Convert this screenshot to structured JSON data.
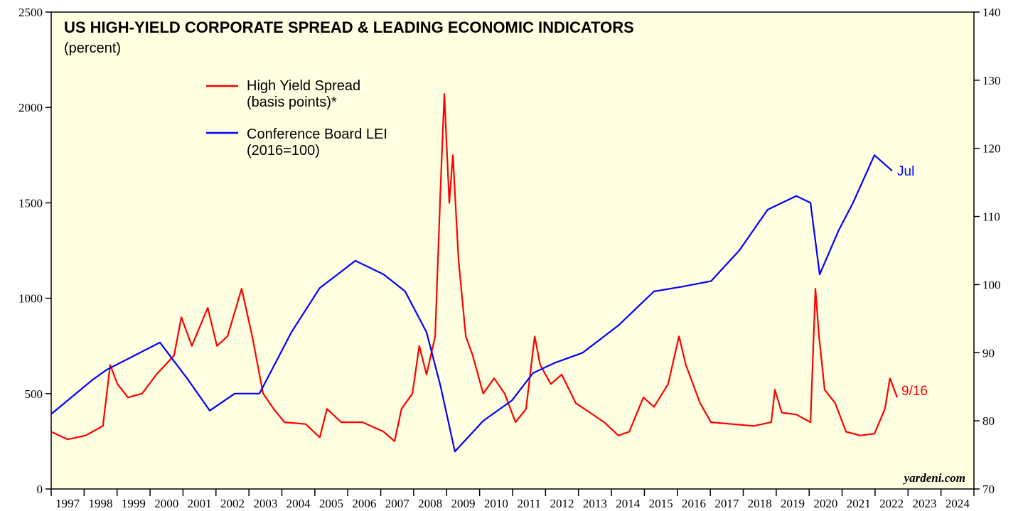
{
  "chart_data": {
    "type": "line",
    "title": "US HIGH-YIELD CORPORATE SPREAD & LEADING ECONOMIC INDICATORS",
    "subtitle": "(percent)",
    "xlim": [
      1997,
      2025
    ],
    "xticks": [
      1997,
      1998,
      1999,
      2000,
      2001,
      2002,
      2003,
      2004,
      2005,
      2006,
      2007,
      2008,
      2009,
      2010,
      2011,
      2012,
      2013,
      2014,
      2015,
      2016,
      2017,
      2018,
      2019,
      2020,
      2021,
      2022,
      2023,
      2024
    ],
    "ylim": [
      0,
      2500
    ],
    "yticks": [
      0,
      500,
      1000,
      1500,
      2000,
      2500
    ],
    "y2lim": [
      70,
      140
    ],
    "y2ticks": [
      70,
      80,
      90,
      100,
      110,
      120,
      130,
      140
    ],
    "series": [
      {
        "name": "High Yield Spread\n(basis points)*",
        "color": "#ff0000",
        "x": [
          1997.0,
          1997.5,
          1998.04,
          1998.57,
          1998.79,
          1999.01,
          1999.33,
          1999.76,
          2000.19,
          2000.73,
          2000.95,
          2001.27,
          2001.75,
          2002.03,
          2002.35,
          2002.78,
          2003.1,
          2003.43,
          2003.75,
          2004.08,
          2004.72,
          2005.15,
          2005.37,
          2005.8,
          2006.45,
          2007.09,
          2007.42,
          2007.63,
          2007.96,
          2008.17,
          2008.39,
          2008.65,
          2008.82,
          2008.93,
          2009.08,
          2009.19,
          2009.36,
          2009.58,
          2009.79,
          2010.11,
          2010.44,
          2010.76,
          2011.09,
          2011.41,
          2011.67,
          2011.84,
          2012.16,
          2012.49,
          2012.92,
          2013.35,
          2013.78,
          2014.21,
          2014.54,
          2014.97,
          2015.29,
          2015.72,
          2016.05,
          2016.26,
          2016.69,
          2017.02,
          2017.66,
          2018.31,
          2018.85,
          2018.96,
          2019.17,
          2019.61,
          2020.04,
          2020.19,
          2020.3,
          2020.47,
          2020.79,
          2021.12,
          2021.55,
          2021.98,
          2022.3,
          2022.45,
          2022.67
        ],
        "values": [
          300,
          260,
          280,
          330,
          650,
          550,
          480,
          500,
          600,
          700,
          900,
          750,
          950,
          750,
          800,
          1050,
          800,
          500,
          420,
          350,
          340,
          270,
          420,
          350,
          350,
          300,
          250,
          420,
          500,
          750,
          600,
          800,
          1600,
          2070,
          1500,
          1750,
          1200,
          800,
          700,
          500,
          580,
          500,
          350,
          420,
          800,
          650,
          550,
          600,
          450,
          400,
          350,
          280,
          300,
          480,
          430,
          550,
          800,
          650,
          450,
          350,
          340,
          330,
          350,
          520,
          400,
          390,
          350,
          1050,
          800,
          520,
          450,
          300,
          280,
          290,
          420,
          580,
          480
        ]
      },
      {
        "name": "Conference Board LEI\n(2016=100)",
        "color": "#0000ff",
        "axis": "y2",
        "x": [
          1997.0,
          1998.25,
          1998.68,
          2000.3,
          2001.16,
          2001.81,
          2002.57,
          2003.32,
          2004.29,
          2005.15,
          2006.23,
          2007.09,
          2007.74,
          2008.39,
          2008.82,
          2009.25,
          2010.11,
          2010.98,
          2011.62,
          2012.27,
          2013.13,
          2014.21,
          2015.29,
          2016.15,
          2017.02,
          2017.88,
          2018.74,
          2019.61,
          2020.04,
          2020.32,
          2020.9,
          2021.33,
          2021.98,
          2022.52
        ],
        "values": [
          81,
          86,
          87.5,
          91.5,
          86,
          81.5,
          84,
          84,
          93,
          99.5,
          103.5,
          101.5,
          99,
          93,
          85,
          75.5,
          80,
          83,
          87,
          88.5,
          90,
          94,
          99,
          99.7,
          100.5,
          105,
          111,
          113,
          112,
          101.5,
          108,
          112,
          119,
          116.7
        ]
      }
    ],
    "annotations": [
      "9/16",
      "Jul",
      "yardeni.com"
    ]
  }
}
